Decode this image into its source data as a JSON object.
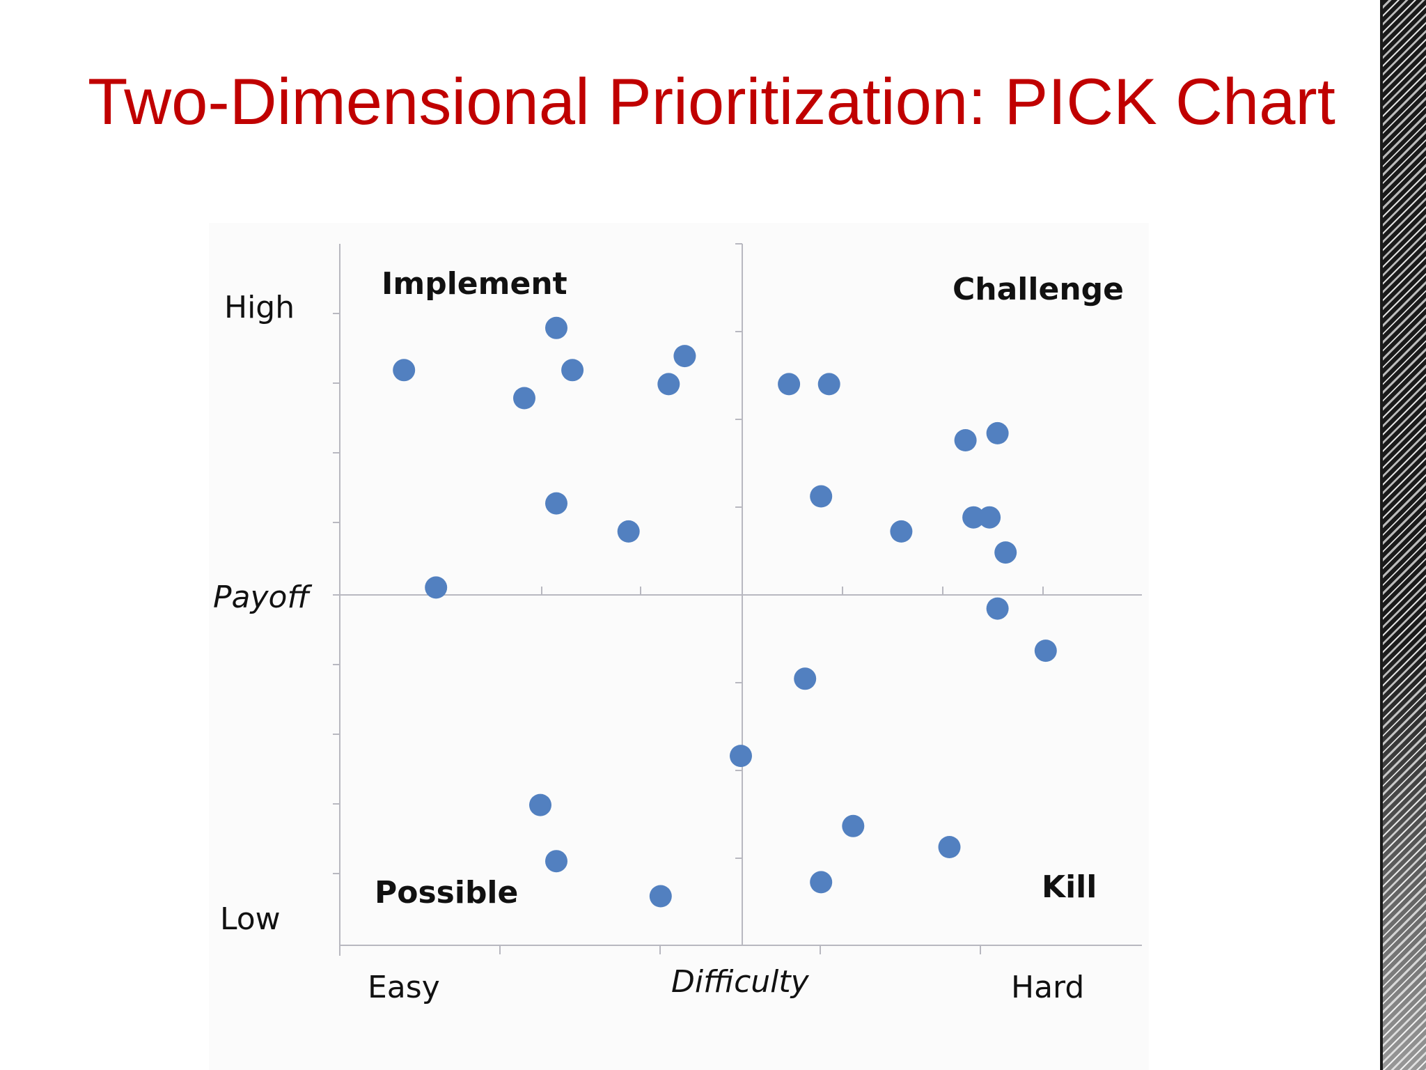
{
  "title": "Two-Dimensional Prioritization: PICK Chart",
  "chart_data": {
    "type": "scatter",
    "title": "Two-Dimensional Prioritization: PICK Chart",
    "xlabel": "Difficulty",
    "ylabel": "Payoff",
    "xlim": [
      0,
      10
    ],
    "ylim": [
      0,
      10
    ],
    "x_tick_labels": [
      "Easy",
      "Hard"
    ],
    "y_tick_labels": [
      "High",
      "Low"
    ],
    "grid": false,
    "quadrants": {
      "top_left": "Implement",
      "top_right": "Challenge",
      "bottom_left": "Possible",
      "bottom_right": "Kill"
    },
    "point_color": "#5280c0",
    "points": [
      {
        "x": 0.8,
        "y": 8.2
      },
      {
        "x": 2.3,
        "y": 7.8
      },
      {
        "x": 2.7,
        "y": 8.8
      },
      {
        "x": 2.9,
        "y": 8.2
      },
      {
        "x": 4.1,
        "y": 8.0
      },
      {
        "x": 4.3,
        "y": 8.4
      },
      {
        "x": 2.7,
        "y": 6.3
      },
      {
        "x": 3.6,
        "y": 5.9
      },
      {
        "x": 1.2,
        "y": 5.1
      },
      {
        "x": 5.6,
        "y": 8.0
      },
      {
        "x": 6.1,
        "y": 8.0
      },
      {
        "x": 7.8,
        "y": 7.2
      },
      {
        "x": 8.2,
        "y": 7.3
      },
      {
        "x": 6.0,
        "y": 6.4
      },
      {
        "x": 7.0,
        "y": 5.9
      },
      {
        "x": 7.9,
        "y": 6.1
      },
      {
        "x": 8.1,
        "y": 6.1
      },
      {
        "x": 8.3,
        "y": 5.6
      },
      {
        "x": 8.2,
        "y": 4.8
      },
      {
        "x": 8.8,
        "y": 4.2
      },
      {
        "x": 5.8,
        "y": 3.8
      },
      {
        "x": 5.0,
        "y": 2.7
      },
      {
        "x": 2.5,
        "y": 2.0
      },
      {
        "x": 2.7,
        "y": 1.2
      },
      {
        "x": 4.0,
        "y": 0.7
      },
      {
        "x": 6.4,
        "y": 1.7
      },
      {
        "x": 7.6,
        "y": 1.4
      },
      {
        "x": 6.0,
        "y": 0.9
      }
    ]
  }
}
